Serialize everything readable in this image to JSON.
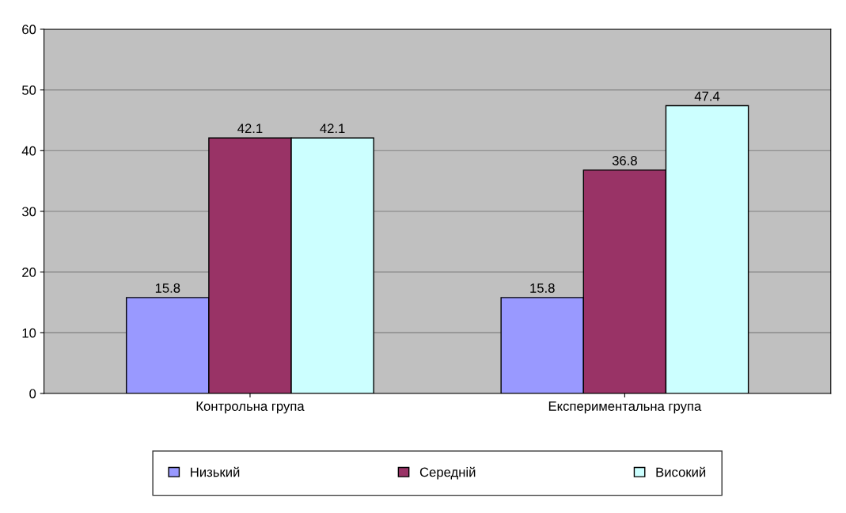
{
  "chart_data": {
    "type": "bar",
    "categories": [
      "Контрольна група",
      "Експериментальна група"
    ],
    "series": [
      {
        "name": "Низький",
        "color": "#9999ff",
        "values": [
          15.8,
          15.8
        ]
      },
      {
        "name": "Середній",
        "color": "#993366",
        "values": [
          42.1,
          36.8
        ]
      },
      {
        "name": "Високий",
        "color": "#ccffff",
        "values": [
          42.1,
          47.4
        ]
      }
    ],
    "ylim": [
      0,
      60
    ],
    "yticks": [
      0,
      10,
      20,
      30,
      40,
      50,
      60
    ],
    "grid": "y",
    "legend": "bottom",
    "data_labels": true
  }
}
